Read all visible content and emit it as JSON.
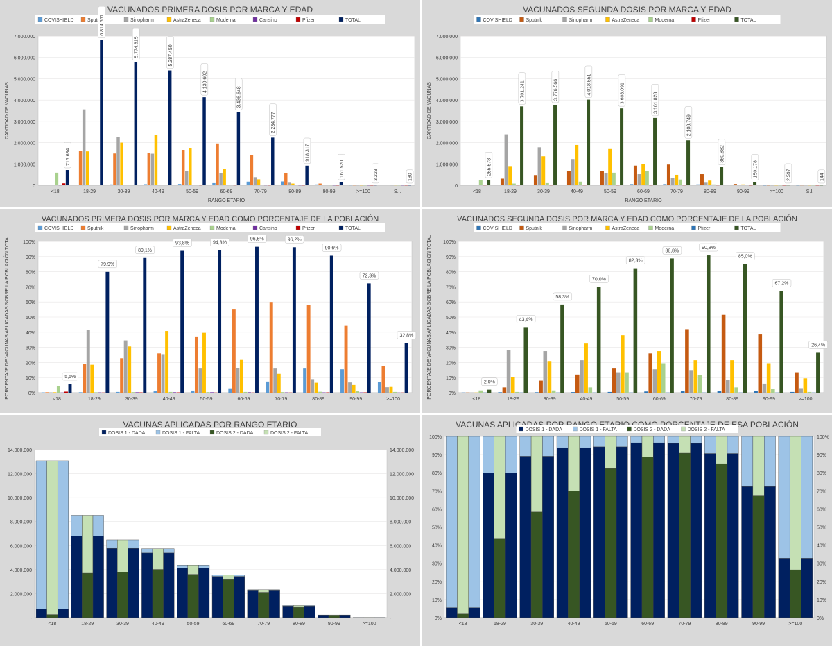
{
  "chart_data": [
    {
      "type": "bar",
      "title": "VACUNADOS PRIMERA DOSIS POR MARCA Y EDAD",
      "xlabel": "RANGO ETARIO",
      "ylabel": "CANTIDAD DE VACUNAS",
      "ylim": [
        0,
        7000000
      ],
      "yticks": [
        "0",
        "1.000.000",
        "2.000.000",
        "3.000.000",
        "4.000.000",
        "5.000.000",
        "6.000.000",
        "7.000.000"
      ],
      "categories": [
        "<18",
        "18-29",
        "30-39",
        "40-49",
        "50-59",
        "60-69",
        "70-79",
        "80-89",
        "90-99",
        ">=100",
        "S.I."
      ],
      "legend_position": "top",
      "series": [
        {
          "name": "COVISHIELD",
          "color": "#5b9bd5",
          "values": [
            20000,
            30000,
            40000,
            50000,
            60000,
            100000,
            170000,
            180000,
            40000,
            5000,
            10000
          ]
        },
        {
          "name": "Sputnik",
          "color": "#ed7d31",
          "values": [
            30000,
            1620000,
            1490000,
            1530000,
            1660000,
            1960000,
            1400000,
            580000,
            80000,
            2000,
            10000
          ]
        },
        {
          "name": "Sinopharm",
          "color": "#a5a5a5",
          "values": [
            20000,
            3560000,
            2260000,
            1480000,
            680000,
            580000,
            380000,
            120000,
            30000,
            1000,
            5000
          ]
        },
        {
          "name": "AstraZeneca",
          "color": "#ffc000",
          "values": [
            30000,
            1590000,
            2000000,
            2370000,
            1750000,
            760000,
            280000,
            80000,
            20000,
            1000,
            5000
          ]
        },
        {
          "name": "Moderna",
          "color": "#a9d18e",
          "values": [
            590000,
            30000,
            30000,
            30000,
            20000,
            20000,
            10000,
            10000,
            5000,
            500,
            2000
          ]
        },
        {
          "name": "Cansino",
          "color": "#7030a0",
          "values": [
            5000,
            20000,
            20000,
            20000,
            15000,
            10000,
            5000,
            2000,
            1000,
            200,
            1000
          ]
        },
        {
          "name": "Pfizer",
          "color": "#c00000",
          "values": [
            90000,
            10000,
            10000,
            10000,
            5000,
            5000,
            3000,
            2000,
            1000,
            200,
            1000
          ]
        },
        {
          "name": "TOTAL",
          "color": "#002060",
          "values": [
            715634,
            6814567,
            5774815,
            5387450,
            4130602,
            3436648,
            2234777,
            918317,
            161520,
            3223,
            180
          ]
        }
      ],
      "data_labels": [
        "715.634",
        "6.814.567",
        "5.774.815",
        "5.387.450",
        "4.130.602",
        "3.436.648",
        "2.234.777",
        "918.317",
        "161.520",
        "3.223",
        "180"
      ]
    },
    {
      "type": "bar",
      "title": "VACUNADOS SEGUNDA DOSIS POR MARCA Y EDAD",
      "xlabel": "RANGO ETARIO",
      "ylabel": "CANTIDAD DE VACUNAS",
      "ylim": [
        0,
        7000000
      ],
      "yticks": [
        "0",
        "1.000.000",
        "2.000.000",
        "3.000.000",
        "4.000.000",
        "5.000.000",
        "6.000.000",
        "7.000.000"
      ],
      "categories": [
        "<18",
        "18-29",
        "30-39",
        "40-49",
        "50-59",
        "60-69",
        "70-79",
        "80-89",
        "90-99",
        ">=100",
        "S.I."
      ],
      "legend_position": "top",
      "series": [
        {
          "name": "COVISHIELD",
          "color": "#2e75b6",
          "values": [
            10000,
            20000,
            20000,
            30000,
            30000,
            50000,
            50000,
            40000,
            10000,
            1000,
            2000
          ]
        },
        {
          "name": "Sputnik",
          "color": "#c55a11",
          "values": [
            10000,
            310000,
            480000,
            680000,
            680000,
            920000,
            970000,
            520000,
            60000,
            1000,
            5000
          ]
        },
        {
          "name": "Sinopharm",
          "color": "#a5a5a5",
          "values": [
            30000,
            2390000,
            1780000,
            1230000,
            580000,
            520000,
            340000,
            120000,
            30000,
            1000,
            5000
          ]
        },
        {
          "name": "AstraZeneca",
          "color": "#ffc000",
          "values": [
            10000,
            900000,
            1360000,
            1890000,
            1700000,
            980000,
            490000,
            220000,
            40000,
            1000,
            3000
          ]
        },
        {
          "name": "Moderna",
          "color": "#a9d18e",
          "values": [
            230000,
            80000,
            100000,
            170000,
            590000,
            680000,
            270000,
            40000,
            10000,
            500,
            1000
          ]
        },
        {
          "name": "Pfizer",
          "color": "#c00000",
          "values": [
            5000,
            5000,
            5000,
            5000,
            5000,
            5000,
            5000,
            5000,
            2000,
            200,
            500
          ]
        },
        {
          "name": "TOTAL",
          "color": "#375623",
          "values": [
            255578,
            3701241,
            3776566,
            4018551,
            3608091,
            3161828,
            2108749,
            860882,
            150178,
            2597,
            144
          ]
        }
      ],
      "data_labels": [
        "255.578",
        "3.701.241",
        "3.776.566",
        "4.018.551",
        "3.608.091",
        "3.161.828",
        "2.108.749",
        "860.882",
        "150.178",
        "2.597",
        "144"
      ]
    },
    {
      "type": "bar",
      "title": "VACUNADOS PRIMERA DOSIS POR MARCA Y EDAD COMO PORCENTAJE DE LA POBLACIÓN",
      "xlabel": "",
      "ylabel": "PORCENTAJE DE VACUNAS APLICADAS SOBRE LA POBLACIÓN TOTAL",
      "ylim": [
        0,
        100
      ],
      "yticks": [
        "0%",
        "10%",
        "20%",
        "30%",
        "40%",
        "50%",
        "60%",
        "70%",
        "80%",
        "90%",
        "100%"
      ],
      "categories": [
        "<18",
        "18-29",
        "30-39",
        "40-49",
        "50-59",
        "60-69",
        "70-79",
        "80-89",
        "90-99",
        ">=100"
      ],
      "legend_position": "top",
      "series": [
        {
          "name": "COVISHIELD",
          "color": "#5b9bd5",
          "values": [
            0.2,
            0.3,
            0.5,
            0.9,
            1.4,
            2.9,
            7.4,
            16.0,
            15.5,
            7.0
          ]
        },
        {
          "name": "Sputnik",
          "color": "#ed7d31",
          "values": [
            0.3,
            19.0,
            22.8,
            26.0,
            37.2,
            55.0,
            60.0,
            58.2,
            44.2,
            17.8
          ]
        },
        {
          "name": "Sinopharm",
          "color": "#a5a5a5",
          "values": [
            0.2,
            41.5,
            34.6,
            25.5,
            16.0,
            16.4,
            16.0,
            9.0,
            6.8,
            3.6
          ]
        },
        {
          "name": "AstraZeneca",
          "color": "#ffc000",
          "values": [
            0.3,
            18.5,
            30.6,
            40.8,
            39.6,
            21.7,
            12.5,
            6.6,
            5.1,
            3.8
          ]
        },
        {
          "name": "Moderna",
          "color": "#a9d18e",
          "values": [
            4.4,
            0.3,
            0.4,
            0.5,
            0.4,
            0.5,
            0.4,
            0.6,
            0.9,
            0.5
          ]
        },
        {
          "name": "Cansino",
          "color": "#7030a0",
          "values": [
            0.1,
            0.2,
            0.3,
            0.3,
            0.3,
            0.3,
            0.2,
            0.2,
            0.2,
            0.1
          ]
        },
        {
          "name": "Pfizer",
          "color": "#c00000",
          "values": [
            0.7,
            0.1,
            0.2,
            0.2,
            0.1,
            0.1,
            0.1,
            0.2,
            0.2,
            0.1
          ]
        },
        {
          "name": "TOTAL",
          "color": "#002060",
          "values": [
            5.5,
            79.9,
            89.1,
            93.8,
            94.3,
            96.5,
            96.2,
            90.6,
            72.3,
            32.8
          ]
        }
      ],
      "data_labels": [
        "5,5%",
        "79,9%",
        "89,1%",
        "93,8%",
        "94,3%",
        "96,5%",
        "96,2%",
        "90,6%",
        "72,3%",
        "32,8%"
      ]
    },
    {
      "type": "bar",
      "title": "VACUNADOS SEGUNDA DOSIS POR MARCA Y EDAD COMO PORCENTAJE DE LA POBLACIÓN",
      "xlabel": "",
      "ylabel": "PORCENTAJE DE VACUNAS APLICADAS SOBRE LA POBLACIÓN TOTAL",
      "ylim": [
        0,
        100
      ],
      "yticks": [
        "0%",
        "10%",
        "20%",
        "30%",
        "40%",
        "50%",
        "60%",
        "70%",
        "80%",
        "90%",
        "100%"
      ],
      "categories": [
        "<18",
        "18-29",
        "30-39",
        "40-49",
        "50-59",
        "60-69",
        "70-79",
        "80-89",
        "90-99",
        ">=100"
      ],
      "legend_position": "top",
      "series": [
        {
          "name": "COVISHIELD",
          "color": "#2e75b6",
          "values": [
            0.1,
            0.3,
            0.3,
            0.4,
            0.5,
            0.8,
            0.9,
            1.2,
            1.0,
            0.5
          ]
        },
        {
          "name": "Sputnik",
          "color": "#c55a11",
          "values": [
            0.1,
            3.5,
            8.0,
            12.0,
            16.0,
            26.0,
            42.0,
            51.5,
            38.5,
            13.5
          ]
        },
        {
          "name": "Sinopharm",
          "color": "#a5a5a5",
          "values": [
            0.1,
            28.0,
            27.5,
            21.5,
            13.5,
            15.5,
            15.0,
            8.5,
            6.0,
            3.0
          ]
        },
        {
          "name": "AstraZeneca",
          "color": "#ffc000",
          "values": [
            0.1,
            10.5,
            21.0,
            32.5,
            38.0,
            27.5,
            21.5,
            21.5,
            19.5,
            9.5
          ]
        },
        {
          "name": "Moderna",
          "color": "#a9d18e",
          "values": [
            1.5,
            0.5,
            1.5,
            3.5,
            13.5,
            19.5,
            11.5,
            3.5,
            2.5,
            0.5
          ]
        },
        {
          "name": "Pfizer",
          "color": "#2e75b6",
          "values": [
            0.1,
            0.1,
            0.1,
            0.1,
            0.1,
            0.1,
            0.1,
            0.1,
            0.1,
            0.1
          ]
        },
        {
          "name": "TOTAL",
          "color": "#375623",
          "values": [
            2.0,
            43.4,
            58.3,
            70.0,
            82.3,
            88.8,
            90.8,
            85.0,
            67.2,
            26.4
          ]
        }
      ],
      "data_labels": [
        "2,0%",
        "43,4%",
        "58,3%",
        "70,0%",
        "82,3%",
        "88,8%",
        "90,8%",
        "85,0%",
        "67,2%",
        "26,4%"
      ]
    },
    {
      "type": "bar",
      "title": "VACUNAS APLICADAS POR RANGO ETARIO",
      "xlabel": "",
      "ylabel": "",
      "ylim": [
        0,
        14000000
      ],
      "yticks": [
        "-",
        "2.000.000",
        "4.000.000",
        "6.000.000",
        "8.000.000",
        "10.000.000",
        "12.000.000",
        "14.000.000"
      ],
      "categories": [
        "<18",
        "18-29",
        "30-39",
        "40-49",
        "50-59",
        "60-69",
        "70-79",
        "80-89",
        "90-99",
        ">=100"
      ],
      "legend_position": "top",
      "series": [
        {
          "name": "DOSIS 1 - DADA",
          "color": "#002060",
          "values": [
            715634,
            6814567,
            5774815,
            5387450,
            4130602,
            3436648,
            2234777,
            918317,
            161520,
            3223
          ]
        },
        {
          "name": "DOSIS 1 - FALTA",
          "color": "#9dc3e6",
          "values": [
            12360000,
            1720000,
            706000,
            356000,
            250000,
            125000,
            88000,
            96000,
            62000,
            6600
          ]
        },
        {
          "name": "DOSIS 2 - DADA",
          "color": "#375623",
          "values": [
            255578,
            3701241,
            3776566,
            4018551,
            3608091,
            3161828,
            2108749,
            860882,
            150178,
            2597
          ]
        },
        {
          "name": "DOSIS 2 - FALTA",
          "color": "#c5e0b4",
          "values": [
            12820000,
            4833000,
            2704000,
            1725000,
            773000,
            400000,
            214000,
            153000,
            73000,
            7200
          ]
        }
      ]
    },
    {
      "type": "bar",
      "title": "VACUNAS APLICADAS POR RANGO ETARIO COMO PORCENTAJE DE ESA POBLACIÓN",
      "xlabel": "",
      "ylabel": "",
      "ylim": [
        0,
        100
      ],
      "yticks": [
        "0%",
        "10%",
        "20%",
        "30%",
        "40%",
        "50%",
        "60%",
        "70%",
        "80%",
        "90%",
        "100%"
      ],
      "categories": [
        "<18",
        "18-29",
        "30-39",
        "40-49",
        "50-59",
        "60-69",
        "70-79",
        "80-89",
        "90-99",
        ">=100"
      ],
      "legend_position": "top",
      "series": [
        {
          "name": "DOSIS 1 - DADA",
          "color": "#002060",
          "values": [
            5.5,
            79.9,
            89.1,
            93.8,
            94.3,
            96.5,
            96.2,
            90.6,
            72.3,
            32.8
          ]
        },
        {
          "name": "DOSIS 1 - FALTA",
          "color": "#9dc3e6",
          "values": [
            94.5,
            20.1,
            10.9,
            6.2,
            5.7,
            3.5,
            3.8,
            9.4,
            27.7,
            67.2
          ]
        },
        {
          "name": "DOSIS 2 - DADA",
          "color": "#375623",
          "values": [
            2.0,
            43.4,
            58.3,
            70.0,
            82.3,
            88.8,
            90.8,
            85.0,
            67.2,
            26.4
          ]
        },
        {
          "name": "DOSIS 2 - FALTA",
          "color": "#c5e0b4",
          "values": [
            98.0,
            56.6,
            41.7,
            30.0,
            17.7,
            11.2,
            9.2,
            15.0,
            32.8,
            73.6
          ]
        }
      ]
    }
  ]
}
